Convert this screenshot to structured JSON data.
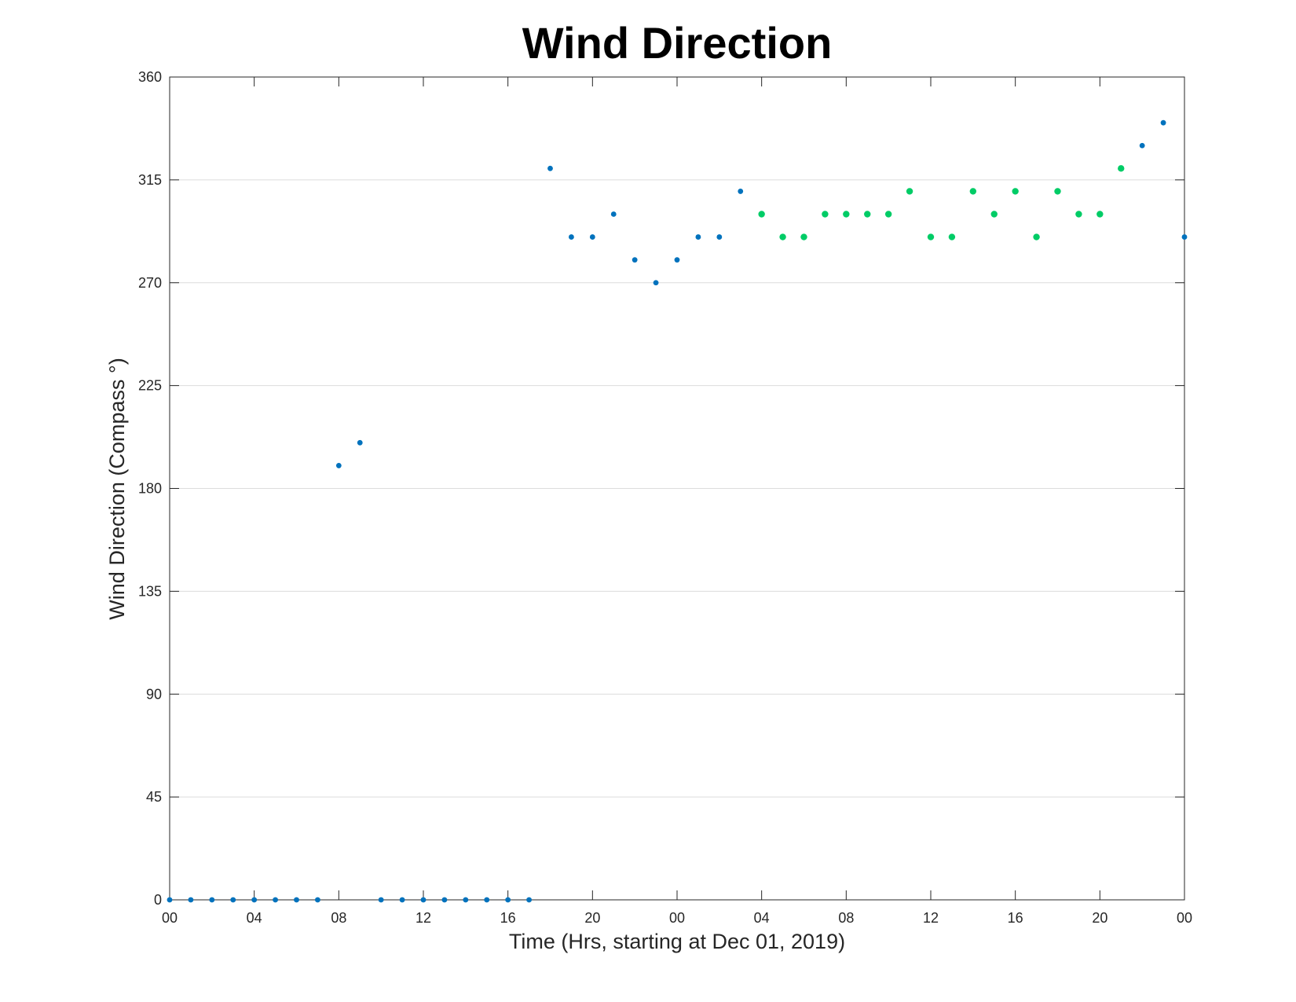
{
  "chart_data": {
    "type": "scatter",
    "title": "Wind Direction",
    "xlabel": "Time (Hrs, starting at Dec 01, 2019)",
    "ylabel": "Wind Direction (Compass °)",
    "xlim": [
      "2019-12-01 00:00",
      "2019-12-03 00:00"
    ],
    "ylim": [
      0,
      360
    ],
    "x_tick_labels": [
      "00",
      "04",
      "08",
      "12",
      "16",
      "20",
      "00",
      "04",
      "08",
      "12",
      "16",
      "20",
      "00"
    ],
    "y_tick_labels": [
      "0",
      "45",
      "90",
      "135",
      "180",
      "225",
      "270",
      "315",
      "360"
    ],
    "grid": "horizontal",
    "colors": {
      "blue": "#0072BD",
      "green": "#00CC66"
    },
    "points": [
      {
        "x": "2019-12-01 00:00",
        "y": 0,
        "color": "blue"
      },
      {
        "x": "2019-12-01 01:00",
        "y": 0,
        "color": "blue"
      },
      {
        "x": "2019-12-01 02:00",
        "y": 0,
        "color": "blue"
      },
      {
        "x": "2019-12-01 03:00",
        "y": 0,
        "color": "blue"
      },
      {
        "x": "2019-12-01 04:00",
        "y": 0,
        "color": "blue"
      },
      {
        "x": "2019-12-01 05:00",
        "y": 0,
        "color": "blue"
      },
      {
        "x": "2019-12-01 06:00",
        "y": 0,
        "color": "blue"
      },
      {
        "x": "2019-12-01 07:00",
        "y": 0,
        "color": "blue"
      },
      {
        "x": "2019-12-01 08:00",
        "y": 190,
        "color": "blue"
      },
      {
        "x": "2019-12-01 09:00",
        "y": 200,
        "color": "blue"
      },
      {
        "x": "2019-12-01 10:00",
        "y": 0,
        "color": "blue"
      },
      {
        "x": "2019-12-01 11:00",
        "y": 0,
        "color": "blue"
      },
      {
        "x": "2019-12-01 12:00",
        "y": 0,
        "color": "blue"
      },
      {
        "x": "2019-12-01 13:00",
        "y": 0,
        "color": "blue"
      },
      {
        "x": "2019-12-01 14:00",
        "y": 0,
        "color": "blue"
      },
      {
        "x": "2019-12-01 15:00",
        "y": 0,
        "color": "blue"
      },
      {
        "x": "2019-12-01 16:00",
        "y": 0,
        "color": "blue"
      },
      {
        "x": "2019-12-01 17:00",
        "y": 0,
        "color": "blue"
      },
      {
        "x": "2019-12-01 18:00",
        "y": 320,
        "color": "blue"
      },
      {
        "x": "2019-12-01 19:00",
        "y": 290,
        "color": "blue"
      },
      {
        "x": "2019-12-01 20:00",
        "y": 290,
        "color": "blue"
      },
      {
        "x": "2019-12-01 21:00",
        "y": 300,
        "color": "blue"
      },
      {
        "x": "2019-12-01 22:00",
        "y": 280,
        "color": "blue"
      },
      {
        "x": "2019-12-01 23:00",
        "y": 270,
        "color": "blue"
      },
      {
        "x": "2019-12-02 00:00",
        "y": 280,
        "color": "blue"
      },
      {
        "x": "2019-12-02 01:00",
        "y": 290,
        "color": "blue"
      },
      {
        "x": "2019-12-02 02:00",
        "y": 290,
        "color": "blue"
      },
      {
        "x": "2019-12-02 03:00",
        "y": 310,
        "color": "blue"
      },
      {
        "x": "2019-12-02 04:00",
        "y": 300,
        "color": "green"
      },
      {
        "x": "2019-12-02 05:00",
        "y": 290,
        "color": "green"
      },
      {
        "x": "2019-12-02 06:00",
        "y": 290,
        "color": "green"
      },
      {
        "x": "2019-12-02 07:00",
        "y": 300,
        "color": "green"
      },
      {
        "x": "2019-12-02 08:00",
        "y": 300,
        "color": "green"
      },
      {
        "x": "2019-12-02 09:00",
        "y": 300,
        "color": "green"
      },
      {
        "x": "2019-12-02 10:00",
        "y": 300,
        "color": "green"
      },
      {
        "x": "2019-12-02 11:00",
        "y": 310,
        "color": "green"
      },
      {
        "x": "2019-12-02 12:00",
        "y": 290,
        "color": "green"
      },
      {
        "x": "2019-12-02 13:00",
        "y": 290,
        "color": "green"
      },
      {
        "x": "2019-12-02 14:00",
        "y": 310,
        "color": "green"
      },
      {
        "x": "2019-12-02 15:00",
        "y": 300,
        "color": "green"
      },
      {
        "x": "2019-12-02 16:00",
        "y": 310,
        "color": "green"
      },
      {
        "x": "2019-12-02 17:00",
        "y": 290,
        "color": "green"
      },
      {
        "x": "2019-12-02 18:00",
        "y": 310,
        "color": "green"
      },
      {
        "x": "2019-12-02 19:00",
        "y": 300,
        "color": "green"
      },
      {
        "x": "2019-12-02 20:00",
        "y": 300,
        "color": "green"
      },
      {
        "x": "2019-12-02 21:00",
        "y": 320,
        "color": "green"
      },
      {
        "x": "2019-12-02 22:00",
        "y": 330,
        "color": "blue"
      },
      {
        "x": "2019-12-02 23:00",
        "y": 340,
        "color": "blue"
      },
      {
        "x": "2019-12-03 00:00",
        "y": 290,
        "color": "blue"
      }
    ]
  }
}
